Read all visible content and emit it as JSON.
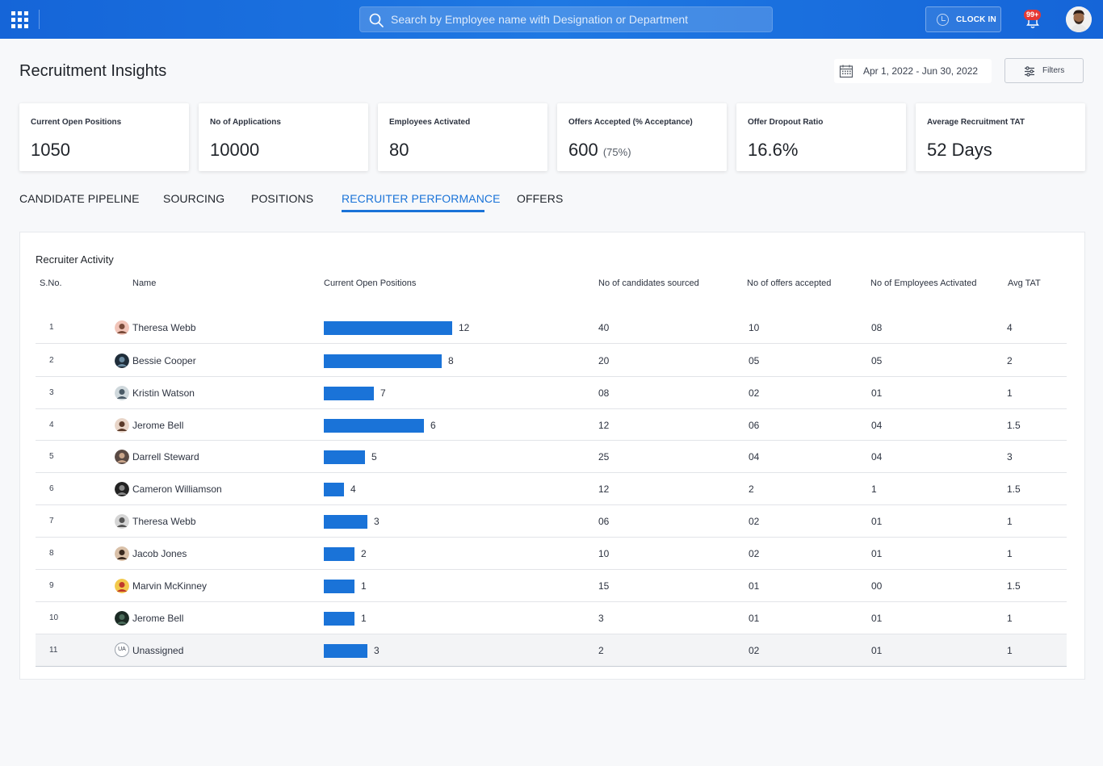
{
  "topbar": {
    "search_placeholder": "Search by Employee name with Designation or Department",
    "clock_in_label": "CLOCK IN",
    "notification_badge": "99+"
  },
  "header": {
    "title": "Recruitment Insights",
    "date_range": "Apr 1, 2022 - Jun 30, 2022",
    "filters_label": "Filters"
  },
  "kpis": [
    {
      "label": "Current Open Positions",
      "value": "1050",
      "sub": ""
    },
    {
      "label": "No of Applications",
      "value": "10000",
      "sub": ""
    },
    {
      "label": "Employees Activated",
      "value": "80",
      "sub": ""
    },
    {
      "label": "Offers Accepted (% Acceptance)",
      "value": "600",
      "sub": "(75%)"
    },
    {
      "label": "Offer Dropout Ratio",
      "value": "16.6%",
      "sub": ""
    },
    {
      "label": "Average  Recruitment TAT",
      "value": "52 Days",
      "sub": ""
    }
  ],
  "tabs": [
    {
      "label": "CANDIDATE PIPELINE"
    },
    {
      "label": "SOURCING"
    },
    {
      "label": "POSITIONS"
    },
    {
      "label": "RECRUITER PERFORMANCE"
    },
    {
      "label": "OFFERS"
    }
  ],
  "active_tab": "RECRUITER PERFORMANCE",
  "accent_color": "#1a73d8",
  "table": {
    "title": "Recruiter Activity",
    "columns": [
      "S.No.",
      "Name",
      "Current Open Positions",
      "No of candidates sourced",
      "No of offers accepted",
      "No of Employees Activated",
      "Avg TAT"
    ],
    "rows": [
      {
        "sno": "1",
        "name": "Theresa Webb",
        "open": "12",
        "open_fill": 1.0,
        "sourced": "40",
        "accepted": "10",
        "activated": "08",
        "tat": "4"
      },
      {
        "sno": "2",
        "name": "Bessie Cooper",
        "open": "8",
        "open_fill": 0.92,
        "sourced": "20",
        "accepted": "05",
        "activated": "05",
        "tat": "2"
      },
      {
        "sno": "3",
        "name": "Kristin Watson",
        "open": "7",
        "open_fill": 0.39,
        "sourced": "08",
        "accepted": "02",
        "activated": "01",
        "tat": "1"
      },
      {
        "sno": "4",
        "name": "Jerome Bell",
        "open": "6",
        "open_fill": 0.78,
        "sourced": "12",
        "accepted": "06",
        "activated": "04",
        "tat": "1.5"
      },
      {
        "sno": "5",
        "name": "Darrell Steward",
        "open": "5",
        "open_fill": 0.32,
        "sourced": "25",
        "accepted": "04",
        "activated": "04",
        "tat": "3"
      },
      {
        "sno": "6",
        "name": "Cameron Williamson",
        "open": "4",
        "open_fill": 0.16,
        "sourced": "12",
        "accepted": "2",
        "activated": "1",
        "tat": "1.5"
      },
      {
        "sno": "7",
        "name": "Theresa Webb",
        "open": "3",
        "open_fill": 0.34,
        "sourced": "06",
        "accepted": "02",
        "activated": "01",
        "tat": "1"
      },
      {
        "sno": "8",
        "name": "Jacob Jones",
        "open": "2",
        "open_fill": 0.24,
        "sourced": "10",
        "accepted": "02",
        "activated": "01",
        "tat": "1"
      },
      {
        "sno": "9",
        "name": "Marvin McKinney",
        "open": "1",
        "open_fill": 0.24,
        "sourced": "15",
        "accepted": "01",
        "activated": "00",
        "tat": "1.5"
      },
      {
        "sno": "10",
        "name": "Jerome Bell",
        "open": "1",
        "open_fill": 0.24,
        "sourced": "3",
        "accepted": "01",
        "activated": "01",
        "tat": "1"
      },
      {
        "sno": "11",
        "name": "Unassigned",
        "initials": "UA",
        "open": "3",
        "open_fill": 0.34,
        "sourced": "2",
        "accepted": "02",
        "activated": "01",
        "tat": "1"
      }
    ]
  }
}
